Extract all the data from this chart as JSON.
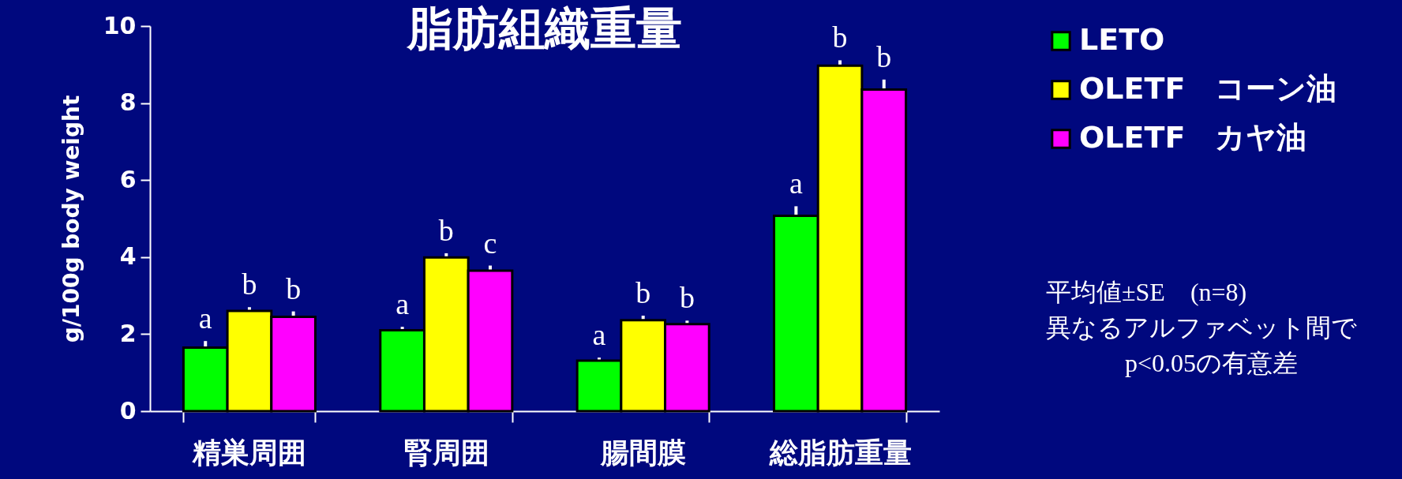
{
  "chart_data": {
    "type": "bar",
    "title": "脂肪組織重量",
    "ylabel": "g/100g body weight",
    "categories": [
      "精巣周囲",
      "腎周囲",
      "腸間膜",
      "総脂肪重量"
    ],
    "series": [
      {
        "name": "LETO",
        "color": "#00ff00",
        "values": [
          1.65,
          2.1,
          1.31,
          5.07
        ],
        "errors": [
          0.17,
          0.09,
          0.08,
          0.25
        ],
        "value_labels": [
          "a",
          "a",
          "a",
          "a"
        ]
      },
      {
        "name": "OLETF　コーン油",
        "color": "#ffff00",
        "values": [
          2.6,
          3.99,
          2.36,
          8.97
        ],
        "errors": [
          0.1,
          0.11,
          0.12,
          0.14
        ],
        "value_labels": [
          "b",
          "b",
          "b",
          "b"
        ]
      },
      {
        "name": "OLETF　カヤ油",
        "color": "#ff00ff",
        "values": [
          2.45,
          3.65,
          2.26,
          8.35
        ],
        "errors": [
          0.14,
          0.13,
          0.09,
          0.26
        ],
        "value_labels": [
          "b",
          "c",
          "b",
          "b"
        ]
      }
    ],
    "ylim": [
      0,
      10
    ],
    "yticks": [
      0,
      2,
      4,
      6,
      8,
      10
    ],
    "grid": false,
    "legend": "top right",
    "annotations": [
      "平均値±SE　(n=8)",
      "異なるアルファベット間で",
      "p<0.05の有意差"
    ]
  }
}
